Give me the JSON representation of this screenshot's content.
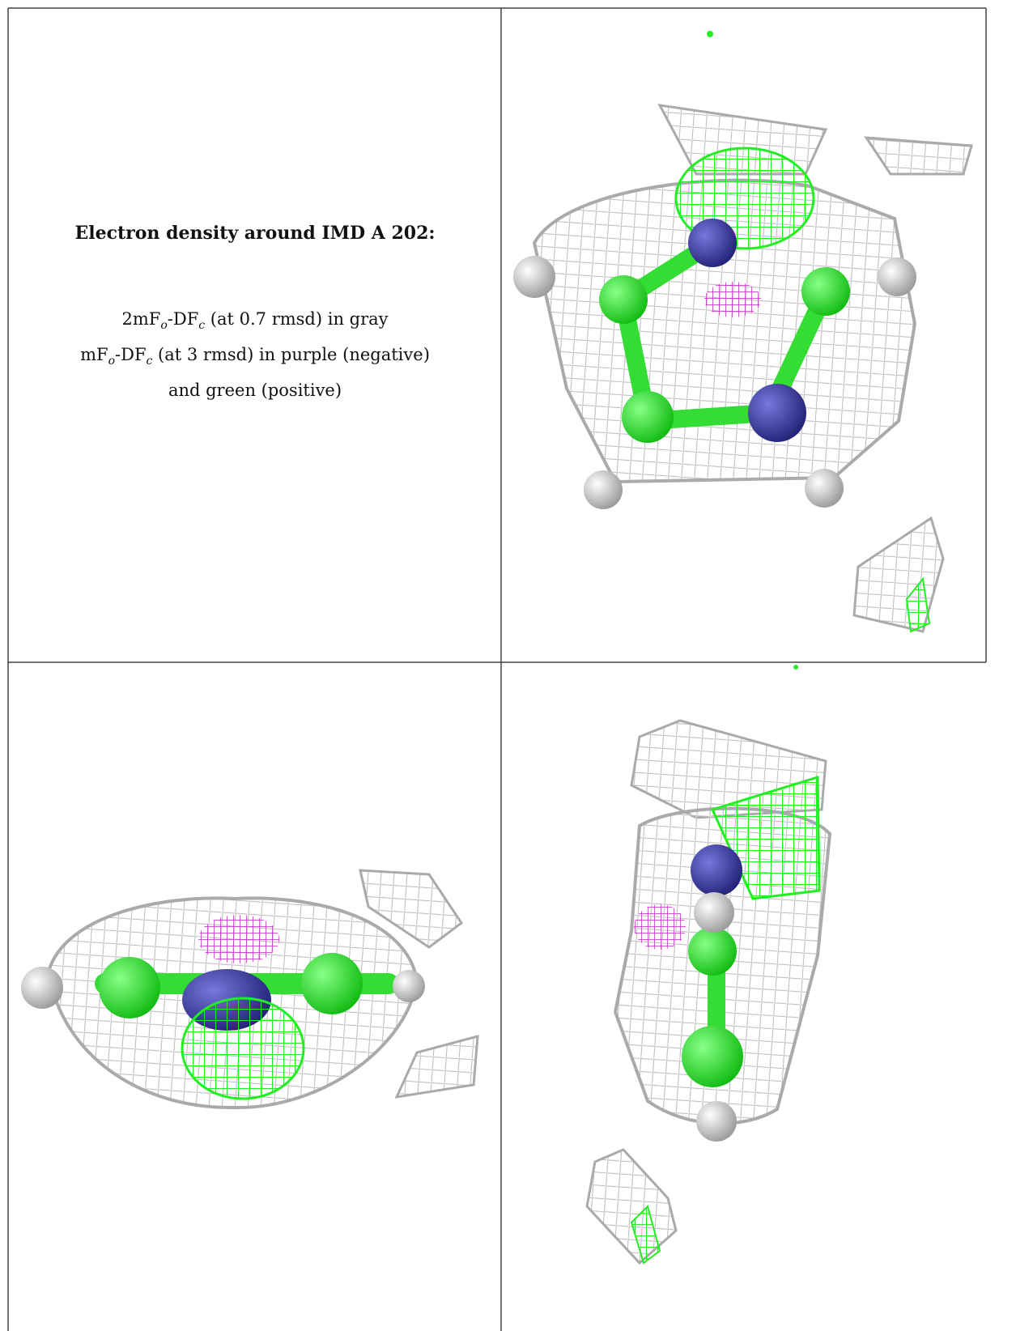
{
  "panel": {
    "heading": "Electron density around IMD A 202:",
    "legend": [
      [
        "2mF",
        "o",
        "-DF",
        "c",
        " (at 0.7 rmsd) in gray"
      ],
      [
        "mF",
        "o",
        "-DF",
        "c",
        " (at 3 rmsd) in purple (negative)"
      ],
      [
        "and green (positive)"
      ]
    ]
  }
}
